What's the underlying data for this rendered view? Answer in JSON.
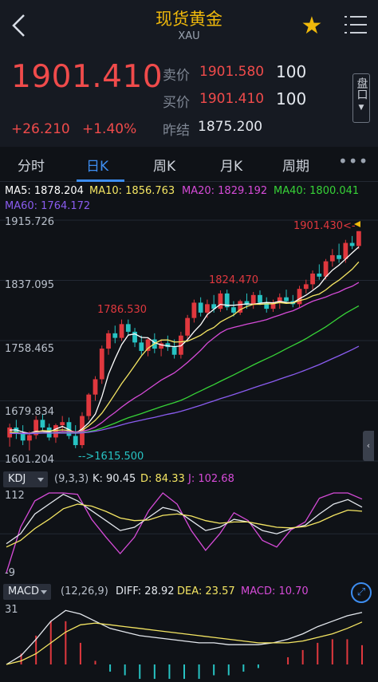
{
  "header": {
    "title": "现货黄金",
    "subtitle": "XAU",
    "back_icon": "chevron-left-icon",
    "favorite_icon": "star-icon",
    "menu_icon": "list-menu-icon"
  },
  "quote": {
    "price": "1901.410",
    "change": "+26.210",
    "change_pct": "+1.40%",
    "ask_label": "卖价",
    "ask_value": "1901.580",
    "ask_qty": "100",
    "bid_label": "买价",
    "bid_value": "1901.410",
    "bid_qty": "100",
    "prev_close_label": "昨结",
    "prev_close_value": "1875.200",
    "side_button": "盘口"
  },
  "tabs": [
    {
      "label": "分时",
      "active": false
    },
    {
      "label": "日K",
      "active": true
    },
    {
      "label": "周K",
      "active": false
    },
    {
      "label": "月K",
      "active": false
    },
    {
      "label": "周期",
      "active": false
    }
  ],
  "tabs_more": "•••",
  "ma_legend": [
    {
      "text": "MA5: 1878.204",
      "color": "#ffffff"
    },
    {
      "text": "MA10: 1856.763",
      "color": "#f5e663"
    },
    {
      "text": "MA20: 1829.192",
      "color": "#d64bd8"
    },
    {
      "text": "MA40: 1800.041",
      "color": "#37d337"
    },
    {
      "text": "MA60: 1764.172",
      "color": "#8a5cf0"
    }
  ],
  "price_axis": [
    "1915.726",
    "1837.095",
    "1758.465",
    "1679.834",
    "1601.204"
  ],
  "annotations": {
    "high_now": "1901.430<-",
    "mid": "1824.470",
    "left_high": "1786.530",
    "low": "-->1615.500"
  },
  "kdj": {
    "name": "KDJ",
    "params": "(9,3,3)",
    "k": "K: 90.45",
    "d": "D: 84.33",
    "j": "J: 102.68",
    "axis_top": "112",
    "axis_bottom": "-9"
  },
  "macd": {
    "name": "MACD",
    "params": "(12,26,9)",
    "diff": "DIFF: 28.92",
    "dea": "DEA: 23.57",
    "macd": "MACD: 10.70",
    "axis_top": "31"
  },
  "colors": {
    "up": "#e0383e",
    "down": "#27c3c3",
    "accent": "#3d8df0",
    "title": "#f0b90b"
  },
  "chart_data": {
    "type": "candlestick",
    "title": "",
    "ylim": [
      1601.204,
      1915.726
    ],
    "candles": [
      [
        1632,
        1650,
        1620,
        1645
      ],
      [
        1645,
        1655,
        1630,
        1638
      ],
      [
        1638,
        1648,
        1622,
        1628
      ],
      [
        1628,
        1640,
        1615,
        1635
      ],
      [
        1635,
        1660,
        1630,
        1655
      ],
      [
        1655,
        1662,
        1640,
        1645
      ],
      [
        1645,
        1650,
        1628,
        1632
      ],
      [
        1632,
        1650,
        1625,
        1648
      ],
      [
        1648,
        1660,
        1640,
        1652
      ],
      [
        1652,
        1658,
        1630,
        1634
      ],
      [
        1634,
        1648,
        1618,
        1622
      ],
      [
        1622,
        1665,
        1618,
        1660
      ],
      [
        1660,
        1690,
        1655,
        1688
      ],
      [
        1688,
        1712,
        1680,
        1708
      ],
      [
        1708,
        1752,
        1702,
        1748
      ],
      [
        1748,
        1772,
        1740,
        1768
      ],
      [
        1768,
        1778,
        1755,
        1762
      ],
      [
        1762,
        1786,
        1758,
        1780
      ],
      [
        1780,
        1786,
        1765,
        1770
      ],
      [
        1770,
        1775,
        1750,
        1756
      ],
      [
        1756,
        1765,
        1740,
        1745
      ],
      [
        1745,
        1762,
        1738,
        1760
      ],
      [
        1760,
        1768,
        1742,
        1748
      ],
      [
        1748,
        1760,
        1738,
        1755
      ],
      [
        1755,
        1765,
        1745,
        1750
      ],
      [
        1750,
        1760,
        1735,
        1740
      ],
      [
        1740,
        1770,
        1735,
        1765
      ],
      [
        1765,
        1792,
        1760,
        1788
      ],
      [
        1788,
        1812,
        1782,
        1808
      ],
      [
        1808,
        1815,
        1790,
        1795
      ],
      [
        1795,
        1812,
        1788,
        1806
      ],
      [
        1806,
        1818,
        1795,
        1800
      ],
      [
        1800,
        1824,
        1796,
        1820
      ],
      [
        1820,
        1825,
        1798,
        1802
      ],
      [
        1802,
        1810,
        1790,
        1795
      ],
      [
        1795,
        1812,
        1792,
        1810
      ],
      [
        1810,
        1820,
        1800,
        1805
      ],
      [
        1805,
        1822,
        1800,
        1818
      ],
      [
        1818,
        1824,
        1805,
        1808
      ],
      [
        1808,
        1815,
        1795,
        1800
      ],
      [
        1800,
        1812,
        1796,
        1808
      ],
      [
        1808,
        1820,
        1800,
        1815
      ],
      [
        1815,
        1825,
        1808,
        1810
      ],
      [
        1810,
        1818,
        1802,
        1806
      ],
      [
        1806,
        1830,
        1802,
        1826
      ],
      [
        1826,
        1838,
        1820,
        1832
      ],
      [
        1832,
        1850,
        1825,
        1846
      ],
      [
        1846,
        1858,
        1838,
        1842
      ],
      [
        1842,
        1865,
        1838,
        1862
      ],
      [
        1862,
        1878,
        1855,
        1870
      ],
      [
        1870,
        1885,
        1860,
        1865
      ],
      [
        1865,
        1890,
        1860,
        1886
      ],
      [
        1886,
        1895,
        1878,
        1882
      ],
      [
        1882,
        1901.43,
        1878,
        1901.41
      ]
    ],
    "kdj": {
      "k": [
        35,
        50,
        80,
        95,
        110,
        100,
        85,
        70,
        55,
        60,
        75,
        90,
        85,
        70,
        55,
        60,
        72,
        68,
        55,
        50,
        58,
        63,
        80,
        95,
        102,
        90.45
      ],
      "d": [
        30,
        40,
        58,
        72,
        88,
        95,
        92,
        84,
        74,
        70,
        71,
        78,
        80,
        77,
        70,
        66,
        68,
        68,
        64,
        60,
        59,
        61,
        68,
        78,
        86,
        84.33
      ],
      "j": [
        -9,
        60,
        100,
        112,
        112,
        110,
        72,
        45,
        20,
        45,
        85,
        112,
        95,
        55,
        25,
        50,
        82,
        70,
        40,
        30,
        56,
        68,
        104,
        112,
        112,
        102.68
      ]
    },
    "macd": {
      "diff": [
        0,
        5,
        14,
        24,
        30,
        28,
        24,
        20,
        18,
        16,
        15,
        14,
        13,
        12,
        12,
        11,
        11,
        11,
        12,
        14,
        17,
        21,
        24,
        27,
        28.92
      ],
      "dea": [
        0,
        2,
        6,
        12,
        18,
        22,
        23,
        22,
        21,
        20,
        19,
        18,
        17,
        16,
        15,
        14,
        13,
        12,
        12,
        12,
        13,
        15,
        17,
        20,
        23.57
      ]
    }
  }
}
